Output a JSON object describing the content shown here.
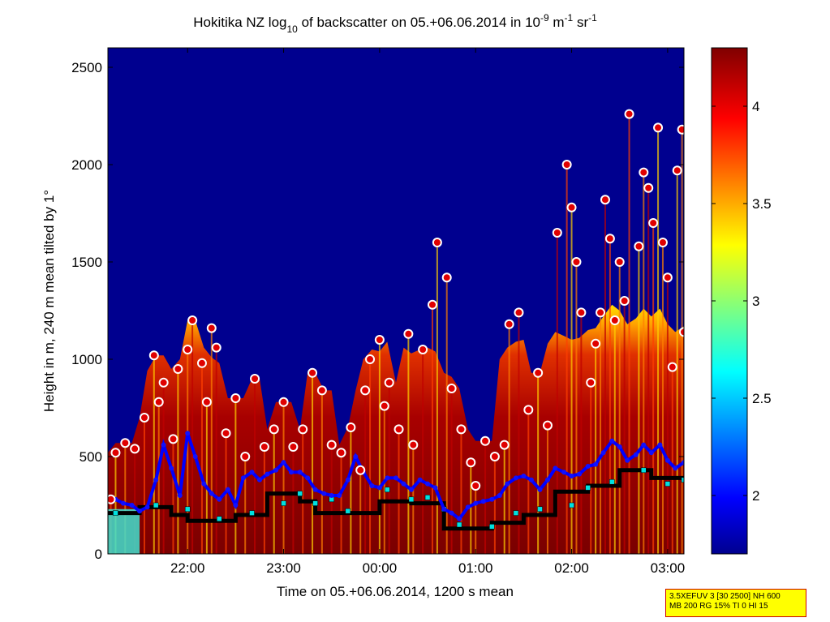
{
  "chart_data": {
    "type": "heatmap",
    "title": {
      "prefix": "Hokitika NZ log",
      "sub": "10",
      "mid": " of backscatter on 05.+06.06.2014 in 10",
      "sup1": "-9",
      "mid2": " m",
      "sup2": "-1",
      "mid3": " sr",
      "sup3": "-1"
    },
    "xlabel": "Time on 05.+06.06.2014, 1200 s mean",
    "ylabel": "Height in m, 240 m mean tilted by 1°",
    "xlim_hours": [
      21.17,
      27.17
    ],
    "ylim": [
      0,
      2600
    ],
    "x_ticks": [
      {
        "label": "22:00",
        "value": 22
      },
      {
        "label": "23:00",
        "value": 23
      },
      {
        "label": "00:00",
        "value": 24
      },
      {
        "label": "01:00",
        "value": 25
      },
      {
        "label": "02:00",
        "value": 26
      },
      {
        "label": "03:00",
        "value": 27
      }
    ],
    "y_ticks": [
      {
        "label": "0",
        "value": 0
      },
      {
        "label": "500",
        "value": 500
      },
      {
        "label": "1000",
        "value": 1000
      },
      {
        "label": "1500",
        "value": 1500
      },
      {
        "label": "2000",
        "value": 2000
      },
      {
        "label": "2500",
        "value": 2500
      }
    ],
    "colorbar": {
      "range": [
        1.7,
        4.3
      ],
      "ticks": [
        {
          "label": "2",
          "value": 2
        },
        {
          "label": "2.5",
          "value": 2.5
        },
        {
          "label": "3",
          "value": 3
        },
        {
          "label": "3.5",
          "value": 3.5
        },
        {
          "label": "4",
          "value": 4
        }
      ]
    },
    "series": [
      {
        "style": "black-line",
        "points": [
          [
            21.17,
            210
          ],
          [
            21.5,
            210
          ],
          [
            21.5,
            240
          ],
          [
            21.83,
            240
          ],
          [
            21.83,
            200
          ],
          [
            22.0,
            200
          ],
          [
            22.0,
            170
          ],
          [
            22.5,
            170
          ],
          [
            22.5,
            200
          ],
          [
            22.83,
            200
          ],
          [
            22.83,
            310
          ],
          [
            23.17,
            310
          ],
          [
            23.17,
            270
          ],
          [
            23.33,
            270
          ],
          [
            23.33,
            210
          ],
          [
            23.67,
            210
          ],
          [
            23.67,
            210
          ],
          [
            24.0,
            210
          ],
          [
            24.0,
            270
          ],
          [
            24.33,
            270
          ],
          [
            24.33,
            260
          ],
          [
            24.67,
            260
          ],
          [
            24.67,
            130
          ],
          [
            25.17,
            130
          ],
          [
            25.17,
            160
          ],
          [
            25.5,
            160
          ],
          [
            25.5,
            200
          ],
          [
            25.83,
            200
          ],
          [
            25.83,
            320
          ],
          [
            26.17,
            320
          ],
          [
            26.17,
            350
          ],
          [
            26.5,
            350
          ],
          [
            26.5,
            430
          ],
          [
            26.83,
            430
          ],
          [
            26.83,
            390
          ],
          [
            27.17,
            390
          ]
        ]
      },
      {
        "style": "cyan-squares",
        "points": [
          [
            21.25,
            210
          ],
          [
            21.67,
            250
          ],
          [
            22.0,
            230
          ],
          [
            22.33,
            180
          ],
          [
            22.67,
            210
          ],
          [
            23.0,
            260
          ],
          [
            23.17,
            310
          ],
          [
            23.33,
            260
          ],
          [
            23.5,
            280
          ],
          [
            23.67,
            220
          ],
          [
            24.08,
            330
          ],
          [
            24.33,
            280
          ],
          [
            24.5,
            290
          ],
          [
            24.67,
            230
          ],
          [
            24.83,
            150
          ],
          [
            25.17,
            140
          ],
          [
            25.42,
            210
          ],
          [
            25.67,
            230
          ],
          [
            26.0,
            250
          ],
          [
            26.17,
            340
          ],
          [
            26.42,
            370
          ],
          [
            26.75,
            430
          ],
          [
            27.0,
            360
          ],
          [
            27.17,
            380
          ]
        ]
      },
      {
        "style": "blue-line",
        "points": [
          [
            21.17,
            270
          ],
          [
            21.25,
            280
          ],
          [
            21.33,
            260
          ],
          [
            21.42,
            250
          ],
          [
            21.5,
            220
          ],
          [
            21.58,
            240
          ],
          [
            21.67,
            380
          ],
          [
            21.75,
            560
          ],
          [
            21.83,
            440
          ],
          [
            21.92,
            300
          ],
          [
            22.0,
            620
          ],
          [
            22.08,
            500
          ],
          [
            22.17,
            360
          ],
          [
            22.25,
            310
          ],
          [
            22.33,
            280
          ],
          [
            22.42,
            330
          ],
          [
            22.5,
            250
          ],
          [
            22.58,
            390
          ],
          [
            22.67,
            420
          ],
          [
            22.75,
            380
          ],
          [
            22.83,
            410
          ],
          [
            22.92,
            430
          ],
          [
            23.0,
            470
          ],
          [
            23.08,
            420
          ],
          [
            23.17,
            420
          ],
          [
            23.25,
            390
          ],
          [
            23.33,
            330
          ],
          [
            23.42,
            310
          ],
          [
            23.5,
            300
          ],
          [
            23.58,
            300
          ],
          [
            23.67,
            380
          ],
          [
            23.75,
            500
          ],
          [
            23.83,
            420
          ],
          [
            23.92,
            350
          ],
          [
            24.0,
            340
          ],
          [
            24.08,
            390
          ],
          [
            24.17,
            390
          ],
          [
            24.25,
            360
          ],
          [
            24.33,
            330
          ],
          [
            24.42,
            380
          ],
          [
            24.5,
            360
          ],
          [
            24.58,
            340
          ],
          [
            24.67,
            230
          ],
          [
            24.75,
            210
          ],
          [
            24.83,
            180
          ],
          [
            24.92,
            240
          ],
          [
            25.0,
            260
          ],
          [
            25.08,
            270
          ],
          [
            25.17,
            280
          ],
          [
            25.25,
            300
          ],
          [
            25.33,
            360
          ],
          [
            25.42,
            390
          ],
          [
            25.5,
            400
          ],
          [
            25.58,
            380
          ],
          [
            25.67,
            330
          ],
          [
            25.75,
            380
          ],
          [
            25.83,
            440
          ],
          [
            25.92,
            420
          ],
          [
            26.0,
            400
          ],
          [
            26.08,
            410
          ],
          [
            26.17,
            450
          ],
          [
            26.25,
            460
          ],
          [
            26.33,
            520
          ],
          [
            26.42,
            580
          ],
          [
            26.5,
            550
          ],
          [
            26.58,
            480
          ],
          [
            26.67,
            510
          ],
          [
            26.75,
            560
          ],
          [
            26.83,
            520
          ],
          [
            26.92,
            560
          ],
          [
            27.0,
            480
          ],
          [
            27.08,
            440
          ],
          [
            27.17,
            470
          ]
        ]
      },
      {
        "style": "red-white-circles",
        "points": [
          [
            21.2,
            280
          ],
          [
            21.25,
            520
          ],
          [
            21.35,
            570
          ],
          [
            21.45,
            540
          ],
          [
            21.55,
            700
          ],
          [
            21.65,
            1020
          ],
          [
            21.7,
            780
          ],
          [
            21.75,
            880
          ],
          [
            21.85,
            590
          ],
          [
            21.9,
            950
          ],
          [
            22.0,
            1050
          ],
          [
            22.05,
            1200
          ],
          [
            22.15,
            980
          ],
          [
            22.2,
            780
          ],
          [
            22.25,
            1160
          ],
          [
            22.3,
            1060
          ],
          [
            22.4,
            620
          ],
          [
            22.5,
            800
          ],
          [
            22.6,
            500
          ],
          [
            22.7,
            900
          ],
          [
            22.8,
            550
          ],
          [
            22.9,
            640
          ],
          [
            23.0,
            780
          ],
          [
            23.1,
            550
          ],
          [
            23.2,
            640
          ],
          [
            23.3,
            930
          ],
          [
            23.4,
            840
          ],
          [
            23.5,
            560
          ],
          [
            23.6,
            520
          ],
          [
            23.7,
            650
          ],
          [
            23.8,
            430
          ],
          [
            23.85,
            840
          ],
          [
            23.9,
            1000
          ],
          [
            24.0,
            1100
          ],
          [
            24.05,
            760
          ],
          [
            24.1,
            880
          ],
          [
            24.2,
            640
          ],
          [
            24.3,
            1130
          ],
          [
            24.35,
            560
          ],
          [
            24.45,
            1050
          ],
          [
            24.55,
            1280
          ],
          [
            24.6,
            1600
          ],
          [
            24.7,
            1420
          ],
          [
            24.75,
            850
          ],
          [
            24.85,
            640
          ],
          [
            24.95,
            470
          ],
          [
            25.0,
            350
          ],
          [
            25.1,
            580
          ],
          [
            25.2,
            500
          ],
          [
            25.3,
            560
          ],
          [
            25.35,
            1180
          ],
          [
            25.45,
            1240
          ],
          [
            25.55,
            740
          ],
          [
            25.65,
            930
          ],
          [
            25.75,
            660
          ],
          [
            25.85,
            1650
          ],
          [
            25.95,
            2000
          ],
          [
            26.0,
            1780
          ],
          [
            26.05,
            1500
          ],
          [
            26.1,
            1240
          ],
          [
            26.2,
            880
          ],
          [
            26.25,
            1080
          ],
          [
            26.3,
            1240
          ],
          [
            26.35,
            1820
          ],
          [
            26.4,
            1620
          ],
          [
            26.45,
            1200
          ],
          [
            26.5,
            1500
          ],
          [
            26.55,
            1300
          ],
          [
            26.6,
            2260
          ],
          [
            26.7,
            1580
          ],
          [
            26.75,
            1960
          ],
          [
            26.8,
            1880
          ],
          [
            26.85,
            1700
          ],
          [
            26.9,
            2190
          ],
          [
            26.95,
            1600
          ],
          [
            27.0,
            1420
          ],
          [
            27.05,
            960
          ],
          [
            27.1,
            1970
          ],
          [
            27.15,
            2180
          ],
          [
            27.17,
            1140
          ]
        ]
      }
    ]
  },
  "info_box": {
    "line1": "3.5XEFUV 3 [30 2500] NH 600",
    "line2": "MB 200 RG 15% TI 0 HI 15"
  }
}
